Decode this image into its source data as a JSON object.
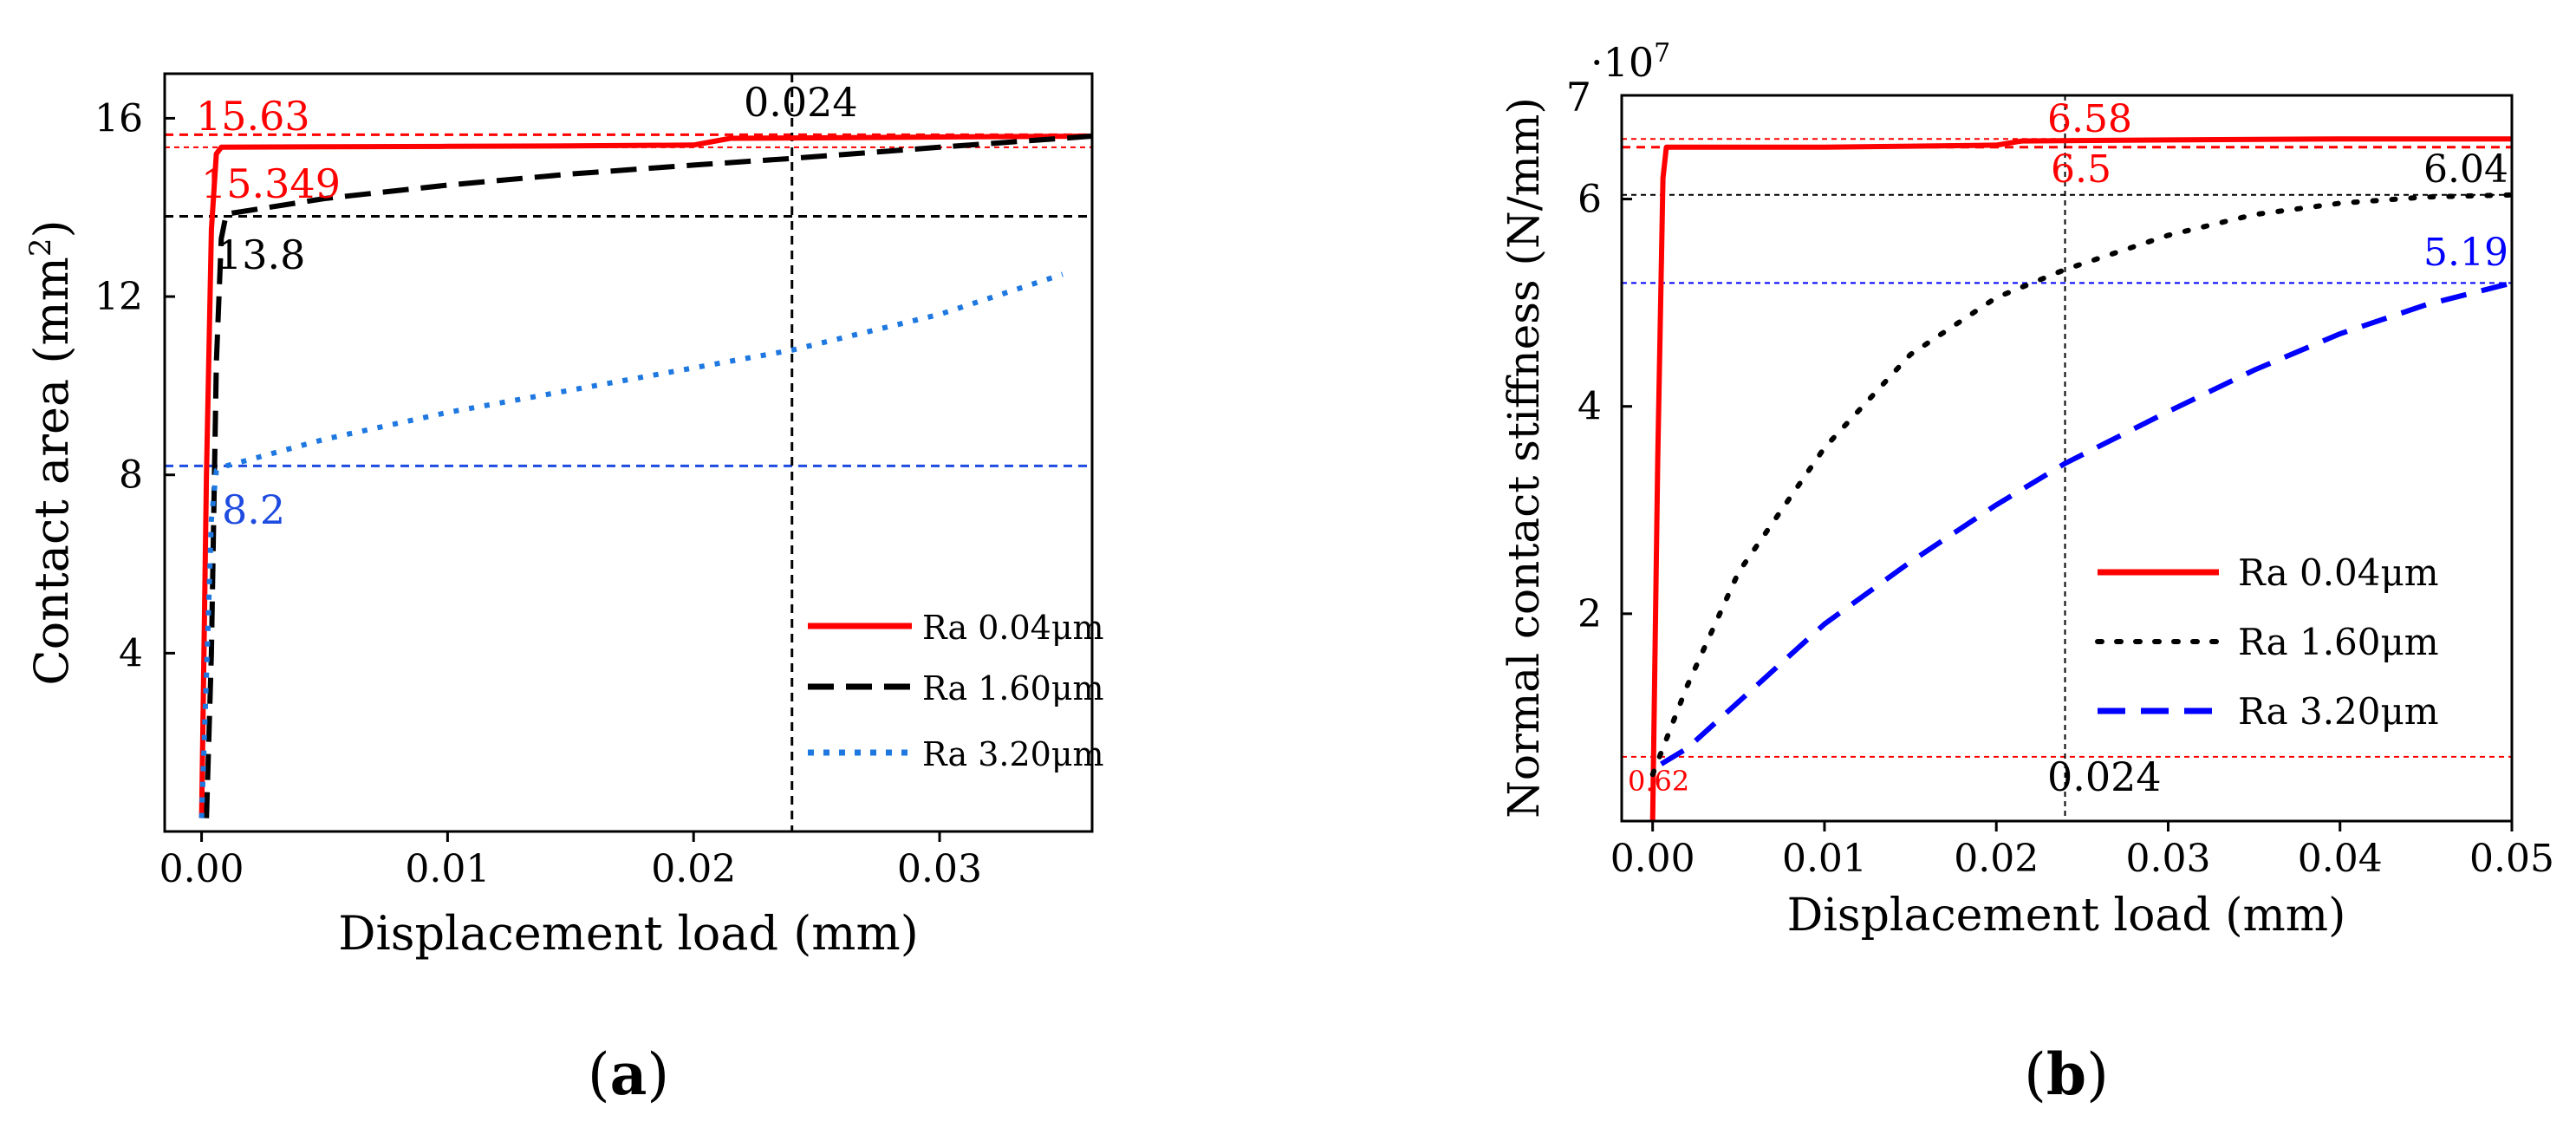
{
  "chart_data": [
    {
      "type": "line",
      "panel_label": "a",
      "xlabel": "Displacement load (mm)",
      "ylabel": "Contact area (mm",
      "ylabel_sup": "2",
      "ylabel_close": ")",
      "xlim": [
        -0.0015,
        0.0362
      ],
      "ylim": [
        0,
        17
      ],
      "xticks": [
        0.0,
        0.01,
        0.02,
        0.03
      ],
      "xtick_labels": [
        "0.00",
        "0.01",
        "0.02",
        "0.03"
      ],
      "yticks": [
        4,
        8,
        12,
        16
      ],
      "ytick_labels": [
        "4",
        "8",
        "12",
        "16"
      ],
      "legend_position": "lower-right",
      "series": [
        {
          "name": "Ra 0.04μm",
          "color": "#ff0000",
          "style": "solid",
          "points": [
            [
              0,
              0.3
            ],
            [
              0.0002,
              8.0
            ],
            [
              0.0004,
              13.5
            ],
            [
              0.0006,
              15.2
            ],
            [
              0.0008,
              15.35
            ],
            [
              0.005,
              15.36
            ],
            [
              0.01,
              15.37
            ],
            [
              0.015,
              15.38
            ],
            [
              0.02,
              15.4
            ],
            [
              0.0215,
              15.55
            ],
            [
              0.025,
              15.56
            ],
            [
              0.03,
              15.58
            ],
            [
              0.0362,
              15.6
            ]
          ]
        },
        {
          "name": "Ra 1.60μm",
          "color": "#000000",
          "style": "dashed",
          "points": [
            [
              0.0002,
              0.3
            ],
            [
              0.0004,
              4.0
            ],
            [
              0.0006,
              10.5
            ],
            [
              0.0008,
              13.3
            ],
            [
              0.001,
              13.85
            ],
            [
              0.005,
              14.2
            ],
            [
              0.01,
              14.5
            ],
            [
              0.015,
              14.75
            ],
            [
              0.02,
              14.95
            ],
            [
              0.024,
              15.1
            ],
            [
              0.03,
              15.35
            ],
            [
              0.0362,
              15.6
            ]
          ]
        },
        {
          "name": "Ra 3.20μm",
          "color": "#1e78e0",
          "style": "dotted",
          "points": [
            [
              0,
              0.3
            ],
            [
              0.0002,
              3.5
            ],
            [
              0.0004,
              7.0
            ],
            [
              0.0006,
              8.1
            ],
            [
              0.001,
              8.2
            ],
            [
              0.005,
              8.8
            ],
            [
              0.01,
              9.4
            ],
            [
              0.015,
              9.9
            ],
            [
              0.02,
              10.4
            ],
            [
              0.024,
              10.8
            ],
            [
              0.03,
              11.6
            ],
            [
              0.035,
              12.5
            ]
          ]
        }
      ],
      "ref_lines": {
        "h": [
          {
            "y": 15.63,
            "color": "#ff0000",
            "style": "dashed"
          },
          {
            "y": 15.349,
            "color": "#ff0000",
            "style": "thin"
          },
          {
            "y": 13.8,
            "color": "#000000",
            "style": "dashed"
          },
          {
            "y": 8.2,
            "color": "#1e4be0",
            "style": "dashed"
          }
        ],
        "v": [
          {
            "x": 0.024,
            "color": "#000000",
            "style": "dashed"
          }
        ]
      },
      "annotations": [
        {
          "text": "15.63",
          "color": "#ff0000"
        },
        {
          "text": "15.349",
          "color": "#ff0000"
        },
        {
          "text": "13.8",
          "color": "#000000"
        },
        {
          "text": "8.2",
          "color": "#1e4be0"
        },
        {
          "text": "0.024",
          "color": "#000000"
        }
      ]
    },
    {
      "type": "line",
      "panel_label": "b",
      "xlabel": "Displacement load (mm)",
      "ylabel": "Normal contact stiffness (N/mm)",
      "y_multiplier": "·10",
      "y_multiplier_exp": "7",
      "xlim": [
        -0.0018,
        0.05
      ],
      "ylim": [
        0,
        7
      ],
      "xticks": [
        0.0,
        0.01,
        0.02,
        0.03,
        0.04,
        0.05
      ],
      "xtick_labels": [
        "0.00",
        "0.01",
        "0.02",
        "0.03",
        "0.04",
        "0.05"
      ],
      "yticks": [
        2,
        4,
        6
      ],
      "ytick_labels": [
        "2",
        "4",
        "6"
      ],
      "top_label": "7",
      "legend_position": "lower-right",
      "series": [
        {
          "name": "Ra 0.04μm",
          "color": "#ff0000",
          "style": "solid",
          "points": [
            [
              0,
              0
            ],
            [
              0.0003,
              3.5
            ],
            [
              0.0006,
              6.2
            ],
            [
              0.0008,
              6.5
            ],
            [
              0.005,
              6.5
            ],
            [
              0.01,
              6.5
            ],
            [
              0.015,
              6.51
            ],
            [
              0.02,
              6.52
            ],
            [
              0.0215,
              6.56
            ],
            [
              0.03,
              6.57
            ],
            [
              0.04,
              6.58
            ],
            [
              0.05,
              6.58
            ]
          ]
        },
        {
          "name": "Ra 1.60μm",
          "color": "#000000",
          "style": "dotted",
          "points": [
            [
              0,
              0.45
            ],
            [
              0.002,
              1.3
            ],
            [
              0.005,
              2.4
            ],
            [
              0.01,
              3.6
            ],
            [
              0.015,
              4.5
            ],
            [
              0.02,
              5.05
            ],
            [
              0.024,
              5.32
            ],
            [
              0.03,
              5.65
            ],
            [
              0.035,
              5.85
            ],
            [
              0.04,
              5.96
            ],
            [
              0.045,
              6.02
            ],
            [
              0.05,
              6.04
            ]
          ]
        },
        {
          "name": "Ra 3.20μm",
          "color": "#0000ff",
          "style": "dashed",
          "points": [
            [
              0.0005,
              0.55
            ],
            [
              0.002,
              0.7
            ],
            [
              0.005,
              1.15
            ],
            [
              0.01,
              1.9
            ],
            [
              0.015,
              2.5
            ],
            [
              0.02,
              3.05
            ],
            [
              0.024,
              3.45
            ],
            [
              0.03,
              3.95
            ],
            [
              0.035,
              4.35
            ],
            [
              0.04,
              4.7
            ],
            [
              0.045,
              4.98
            ],
            [
              0.05,
              5.19
            ]
          ]
        }
      ],
      "ref_lines": {
        "h": [
          {
            "y": 6.58,
            "color": "#ff0000",
            "style": "thin"
          },
          {
            "y": 6.5,
            "color": "#ff0000",
            "style": "dashed"
          },
          {
            "y": 6.04,
            "color": "#000000",
            "style": "thin"
          },
          {
            "y": 5.19,
            "color": "#0000ff",
            "style": "thin"
          },
          {
            "y": 0.62,
            "color": "#ff0000",
            "style": "thin"
          }
        ],
        "v": [
          {
            "x": 0.024,
            "color": "#000000",
            "style": "thin"
          }
        ]
      },
      "annotations": [
        {
          "text": "6.58",
          "color": "#ff0000"
        },
        {
          "text": "6.5",
          "color": "#ff0000"
        },
        {
          "text": "6.04",
          "color": "#000000"
        },
        {
          "text": "5.19",
          "color": "#0000ff"
        },
        {
          "text": "0.62",
          "color": "#ff0000"
        },
        {
          "text": "0.024",
          "color": "#000000"
        }
      ]
    }
  ]
}
